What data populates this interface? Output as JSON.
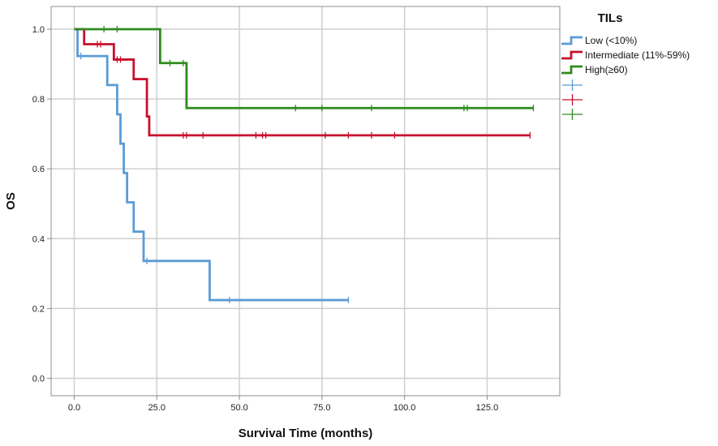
{
  "chart_data": {
    "type": "line",
    "step": true,
    "title": "",
    "xlabel": "Survival Time (months)",
    "ylabel": "OS",
    "xlim": [
      -7,
      147
    ],
    "ylim": [
      -0.05,
      1.065
    ],
    "x_ticks": [
      0,
      25,
      50,
      75,
      100,
      125
    ],
    "x_tick_labels": [
      "0.0",
      "25.0",
      "50.0",
      "75.0",
      "100.0",
      "125.0"
    ],
    "y_ticks": [
      0,
      0.2,
      0.4,
      0.6,
      0.8,
      1.0
    ],
    "y_tick_labels": [
      "0.0",
      "0.2",
      "0.4",
      "0.6",
      "0.8",
      "1.0"
    ],
    "grid": true,
    "legend": {
      "title": "TILs",
      "placement": "right",
      "entries": [
        "Low (<10%)",
        "Intermediate (11%-59%)",
        "High(≥60)",
        "",
        "",
        ""
      ]
    },
    "series": [
      {
        "name": "Low (<10%)",
        "color": "#5b9bd5",
        "steps": [
          [
            0,
            1.0
          ],
          [
            1,
            0.923
          ],
          [
            10,
            0.84
          ],
          [
            13,
            0.756
          ],
          [
            14,
            0.672
          ],
          [
            15,
            0.588
          ],
          [
            16,
            0.504
          ],
          [
            18,
            0.42
          ],
          [
            21,
            0.336
          ],
          [
            41,
            0.224
          ]
        ],
        "end_x": 83,
        "censored": [
          [
            2,
            0.923
          ],
          [
            22,
            0.336
          ],
          [
            47,
            0.224
          ],
          [
            83,
            0.224
          ]
        ]
      },
      {
        "name": "Intermediate (11%-59%)",
        "color": "#c8102e",
        "steps": [
          [
            0,
            1.0
          ],
          [
            3,
            0.957
          ],
          [
            12,
            0.913
          ],
          [
            18,
            0.857
          ],
          [
            22,
            0.75
          ],
          [
            22.7,
            0.696
          ]
        ],
        "end_x": 138,
        "censored": [
          [
            7,
            0.957
          ],
          [
            8,
            0.957
          ],
          [
            13,
            0.913
          ],
          [
            14,
            0.913
          ],
          [
            33,
            0.696
          ],
          [
            34,
            0.696
          ],
          [
            39,
            0.696
          ],
          [
            55,
            0.696
          ],
          [
            57,
            0.696
          ],
          [
            58,
            0.696
          ],
          [
            76,
            0.696
          ],
          [
            83,
            0.696
          ],
          [
            90,
            0.696
          ],
          [
            97,
            0.696
          ],
          [
            138,
            0.696
          ]
        ]
      },
      {
        "name": "High(≥60)",
        "color": "#2e8b1e",
        "steps": [
          [
            0,
            1.0
          ],
          [
            26,
            0.903
          ],
          [
            34,
            0.774
          ]
        ],
        "end_x": 139,
        "censored": [
          [
            9,
            1.0
          ],
          [
            13,
            1.0
          ],
          [
            29,
            0.903
          ],
          [
            33,
            0.903
          ],
          [
            67,
            0.774
          ],
          [
            75,
            0.774
          ],
          [
            90,
            0.774
          ],
          [
            118,
            0.774
          ],
          [
            119,
            0.774
          ],
          [
            139,
            0.774
          ]
        ]
      }
    ]
  }
}
